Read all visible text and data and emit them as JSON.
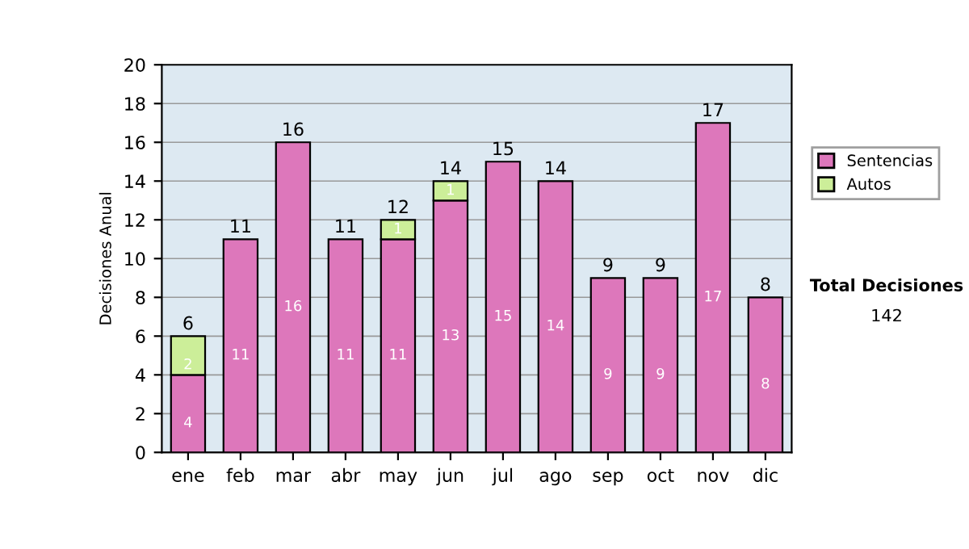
{
  "chart_data": {
    "type": "bar",
    "ylabel": "Decisiones Anual",
    "categories": [
      "ene",
      "feb",
      "mar",
      "abr",
      "may",
      "jun",
      "jul",
      "ago",
      "sep",
      "oct",
      "nov",
      "dic"
    ],
    "series": [
      {
        "name": "Sentencias",
        "color": "#dd77bb",
        "values": [
          4,
          11,
          16,
          11,
          11,
          13,
          15,
          14,
          9,
          9,
          17,
          8
        ]
      },
      {
        "name": "Autos",
        "color": "#ccee99",
        "values": [
          2,
          null,
          null,
          null,
          1,
          1,
          null,
          null,
          null,
          null,
          null,
          null
        ]
      }
    ],
    "stacked": true,
    "data_labels": true,
    "totals": [
      "6",
      "11",
      "16",
      "11",
      "12",
      "14",
      "15",
      "14",
      "9",
      "9",
      "17",
      "8"
    ],
    "ylim": [
      0,
      20
    ],
    "yticks": [
      0,
      2,
      4,
      6,
      8,
      10,
      12,
      14,
      16,
      18,
      20
    ],
    "grid": "y",
    "legend": "right",
    "annotations": [
      "Total Decisiones",
      "142"
    ]
  }
}
